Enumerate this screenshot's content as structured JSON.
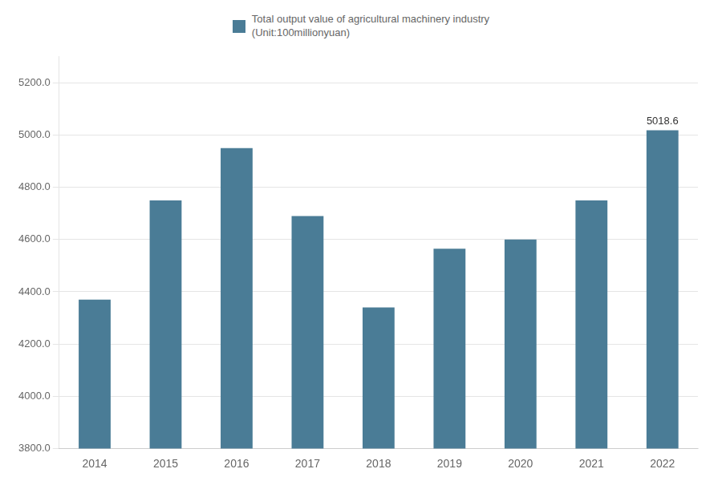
{
  "chart_data": {
    "type": "bar",
    "categories": [
      "2014",
      "2015",
      "2016",
      "2017",
      "2018",
      "2019",
      "2020",
      "2021",
      "2022"
    ],
    "series": [
      {
        "name": "Total output value of agricultural machinery industry\n(Unit:100millionyuan)",
        "color": "#4a7c96",
        "values": [
          4370,
          4750,
          4950,
          4690,
          4340,
          4565,
          4600,
          4750,
          5018.6
        ]
      }
    ],
    "ylim": [
      3800,
      5300
    ],
    "yticks": [
      {
        "value": 3800.0,
        "label": "3800.0"
      },
      {
        "value": 4000.0,
        "label": "4000.0"
      },
      {
        "value": 4200.0,
        "label": "4200.0"
      },
      {
        "value": 4400.0,
        "label": "4400.0"
      },
      {
        "value": 4600.0,
        "label": "4600.0"
      },
      {
        "value": 4800.0,
        "label": "4800.0"
      },
      {
        "value": 5000.0,
        "label": "5000.0"
      },
      {
        "value": 5200.0,
        "label": "5200.0"
      }
    ],
    "grid": true,
    "legend": "top",
    "annotations": [
      {
        "text": "5018.6",
        "x": "2022",
        "y": 5018.6
      }
    ]
  }
}
